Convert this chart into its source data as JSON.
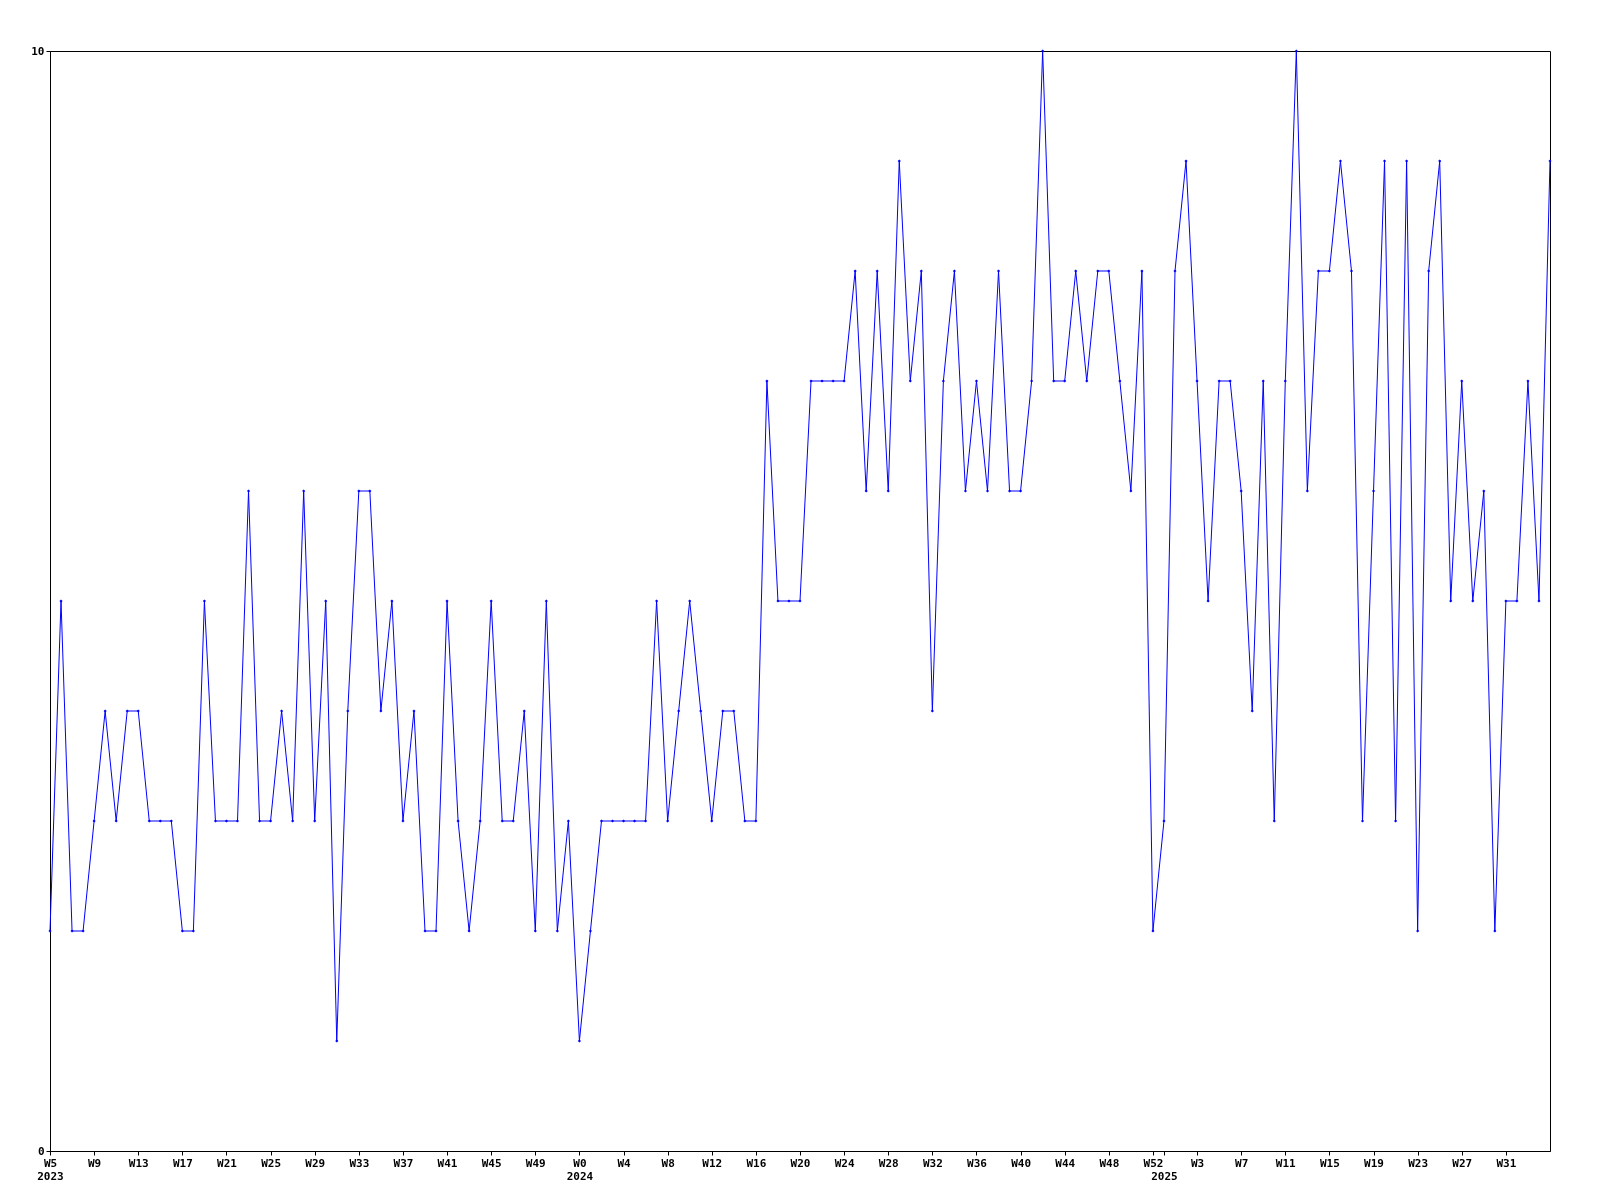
{
  "chart_data": {
    "type": "line",
    "categories": [
      "W5\n2023",
      null,
      null,
      null,
      "W9",
      null,
      null,
      null,
      "W13",
      null,
      null,
      null,
      "W17",
      null,
      null,
      null,
      "W21",
      null,
      null,
      null,
      "W25",
      null,
      null,
      null,
      "W29",
      null,
      null,
      null,
      "W33",
      null,
      null,
      null,
      "W37",
      null,
      null,
      null,
      "W41",
      null,
      null,
      null,
      "W45",
      null,
      null,
      null,
      "W49",
      null,
      null,
      null,
      "W0\n2024",
      null,
      null,
      null,
      "W4",
      null,
      null,
      null,
      "W8",
      null,
      null,
      null,
      "W12",
      null,
      null,
      null,
      "W16",
      null,
      null,
      null,
      "W20",
      null,
      null,
      null,
      "W24",
      null,
      null,
      null,
      "W28",
      null,
      null,
      null,
      "W32",
      null,
      null,
      null,
      "W36",
      null,
      null,
      null,
      "W40",
      null,
      null,
      null,
      "W44",
      null,
      null,
      null,
      "W48",
      null,
      null,
      null,
      "W52",
      "\n2025",
      null,
      null,
      "W3",
      null,
      null,
      null,
      "W7",
      null,
      null,
      null,
      "W11",
      null,
      null,
      null,
      "W15",
      null,
      null,
      null,
      "W19",
      null,
      null,
      null,
      "W23",
      null,
      null,
      null,
      "W27",
      null,
      null,
      null,
      "W31",
      null,
      null,
      null,
      null
    ],
    "series": [
      {
        "color": "#0000ff",
        "values": [
          2,
          5,
          2,
          2,
          3,
          4,
          3,
          4,
          4,
          3,
          3,
          3,
          2,
          2,
          5,
          3,
          3,
          3,
          6,
          3,
          3,
          4,
          3,
          6,
          3,
          5,
          1,
          4,
          6,
          6,
          4,
          5,
          3,
          4,
          2,
          2,
          5,
          3,
          2,
          3,
          5,
          3,
          3,
          4,
          2,
          5,
          2,
          3,
          1,
          2,
          3,
          3,
          3,
          3,
          3,
          5,
          3,
          4,
          5,
          4,
          3,
          4,
          4,
          3,
          3,
          7,
          5,
          5,
          5,
          7,
          7,
          7,
          7,
          8,
          6,
          8,
          6,
          9,
          7,
          8,
          4,
          7,
          8,
          6,
          7,
          6,
          8,
          6,
          6,
          7,
          10,
          7,
          7,
          8,
          7,
          8,
          8,
          7,
          6,
          8,
          2,
          3,
          8,
          9,
          7,
          5,
          7,
          7,
          6,
          4,
          7,
          3,
          7,
          10,
          6,
          8,
          8,
          9,
          8,
          3,
          6,
          9,
          3,
          9,
          2,
          8,
          9,
          5,
          7,
          5,
          6,
          2,
          5,
          5,
          7,
          5,
          9
        ]
      }
    ],
    "ylim": [
      0,
      10
    ],
    "yticks": [
      0,
      10
    ],
    "grid": false,
    "legend": false,
    "marker": "diamond",
    "line_style": "solid"
  }
}
